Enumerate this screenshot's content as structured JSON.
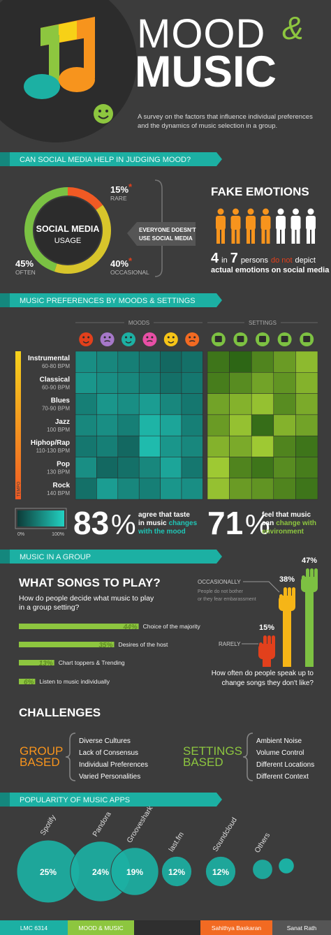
{
  "header": {
    "title_line1": "MOOD",
    "ampersand": "&",
    "title_line2": "MUSIC",
    "subtitle_lines": [
      "A survey on the factors that influence individual preferences",
      "and the dynamics of music selection in a group."
    ]
  },
  "social_media": {
    "banner": "CAN SOCIAL MEDIA HELP IN JUDGING MOOD?",
    "center_lines": [
      "SOCIAL MEDIA",
      "USAGE"
    ],
    "segments": [
      {
        "name": "RARE",
        "value": 15,
        "label": "15%",
        "color": "#f15a24",
        "asterisk": "*"
      },
      {
        "name": "OCCASIONAL",
        "value": 40,
        "label": "40%",
        "color": "#d8c52b",
        "asterisk": "*"
      },
      {
        "name": "OFTEN",
        "value": 45,
        "label": "45%",
        "color": "#7ac143"
      }
    ],
    "note_lines": [
      "EVERYONE DOESN'T",
      "USE SOCIAL MEDIA"
    ]
  },
  "fake_emotions": {
    "title": "FAKE EMOTIONS",
    "count": 4,
    "word_in": "in",
    "total": 7,
    "persons_word": "persons",
    "negation": "do not",
    "verb": "depict",
    "line2": "actual emotions on social media",
    "fake_color": "#f7941d",
    "true_color": "#ffffff"
  },
  "preferences": {
    "banner": "MUSIC PREFERENCES BY MOODS & SETTINGS",
    "moods_label": "MOODS",
    "settings_label": "SETTINGS",
    "tempo_label": "TEMPO",
    "genres": [
      {
        "name": "Instrumental",
        "bpm": "60-80 BPM"
      },
      {
        "name": "Classical",
        "bpm": "60-90 BPM"
      },
      {
        "name": "Blues",
        "bpm": "70-90 BPM"
      },
      {
        "name": "Jazz",
        "bpm": "100 BPM"
      },
      {
        "name": "Hiphop/Rap",
        "bpm": "110-130 BPM"
      },
      {
        "name": "Pop",
        "bpm": "130 BPM"
      },
      {
        "name": "Rock",
        "bpm": "140 BPM"
      }
    ],
    "mood_values": [
      [
        55,
        50,
        45,
        40,
        30,
        35
      ],
      [
        60,
        55,
        50,
        45,
        35,
        40
      ],
      [
        45,
        60,
        55,
        65,
        50,
        40
      ],
      [
        50,
        55,
        45,
        80,
        70,
        45
      ],
      [
        40,
        45,
        30,
        85,
        60,
        50
      ],
      [
        55,
        30,
        35,
        50,
        70,
        40
      ],
      [
        35,
        65,
        50,
        45,
        60,
        55
      ]
    ],
    "settings_values": [
      [
        30,
        20,
        40,
        55,
        75
      ],
      [
        35,
        45,
        60,
        50,
        70
      ],
      [
        60,
        70,
        80,
        45,
        65
      ],
      [
        55,
        80,
        25,
        70,
        60
      ],
      [
        70,
        65,
        85,
        40,
        30
      ],
      [
        85,
        40,
        30,
        45,
        35
      ],
      [
        80,
        55,
        50,
        40,
        30
      ]
    ],
    "mood_colors": [
      "#0d3b38",
      "#22d2c2"
    ],
    "settings_colors": [
      "#0a470c",
      "#b8e03a"
    ],
    "scale_min": {
      "value": 0,
      "label": "0%"
    },
    "scale_max": {
      "value": 100,
      "label": "100%"
    },
    "mood_stat": {
      "value": 83,
      "sign": "%",
      "plain": [
        "agree that taste",
        "in music"
      ],
      "highlight": [
        "changes",
        "with the mood"
      ],
      "color": "#1fc6b6"
    },
    "settings_stat": {
      "value": 71,
      "sign": "%",
      "plain": [
        "feel that music",
        "can"
      ],
      "highlight": [
        "change with",
        "environment"
      ],
      "color": "#8dc63f"
    }
  },
  "group": {
    "banner": "MUSIC IN A GROUP",
    "title": "WHAT SONGS TO PLAY?",
    "question_lines": [
      "How do people decide what music to play",
      "in a group setting?"
    ],
    "bar_color": "#8dc63f",
    "bars": [
      {
        "value": 44,
        "label": "44%",
        "text": "Choice of the majority"
      },
      {
        "value": 35,
        "label": "35%",
        "text": "Desires of the host"
      },
      {
        "value": 13,
        "label": "13%",
        "text": "Chart toppers & Trending"
      },
      {
        "value": 6,
        "label": "6%",
        "text": "Listen to music individually"
      }
    ]
  },
  "speak_up": {
    "hands": [
      {
        "name": "RARELY",
        "value": 15,
        "label": "15%",
        "color": "#e2401c"
      },
      {
        "name": "OCCASIONALLY",
        "value": 38,
        "label": "38%",
        "color": "#f6b517",
        "note_lines": [
          "People do not bother",
          "or they fear embarassment"
        ]
      },
      {
        "value": 47,
        "label": "47%",
        "color": "#7dc142"
      }
    ],
    "question_lines": [
      "How often do people speak up to",
      "change songs they don't like?"
    ]
  },
  "challenges": {
    "title": "CHALLENGES",
    "groups": [
      {
        "name_lines": [
          "GROUP",
          "BASED"
        ],
        "color": "#f7941d",
        "items": [
          "Diverse Cultures",
          "Lack of Consensus",
          "Individual Preferences",
          "Varied Personalities"
        ]
      },
      {
        "name_lines": [
          "SETTINGS",
          "BASED"
        ],
        "color": "#8dc63f",
        "items": [
          "Ambient Noise",
          "Volume Control",
          "Different Locations",
          "Different Context"
        ]
      }
    ]
  },
  "apps": {
    "banner": "POPULARITY OF MUSIC APPS",
    "color": "#1cb0a3",
    "items": [
      {
        "name": "Spotify",
        "value": 25,
        "label": "25%"
      },
      {
        "name": "Pandora",
        "value": 24,
        "label": "24%"
      },
      {
        "name": "Grooveshark",
        "value": 19,
        "label": "19%"
      },
      {
        "name": "last.fm",
        "value": 12,
        "label": "12%"
      },
      {
        "name": "Soundcloud",
        "value": 12,
        "label": "12%"
      },
      {
        "name": "Others",
        "value": 8
      }
    ]
  },
  "footer": {
    "items": [
      {
        "text": "LMC 6314",
        "color": "#1cb0a3"
      },
      {
        "text": "MOOD & MUSIC",
        "color": "#8dc63f"
      },
      {
        "text": "Sahithya Baskaran",
        "color": "#f26a22"
      },
      {
        "text": "Sanat Rath",
        "color": "#555555"
      }
    ]
  }
}
